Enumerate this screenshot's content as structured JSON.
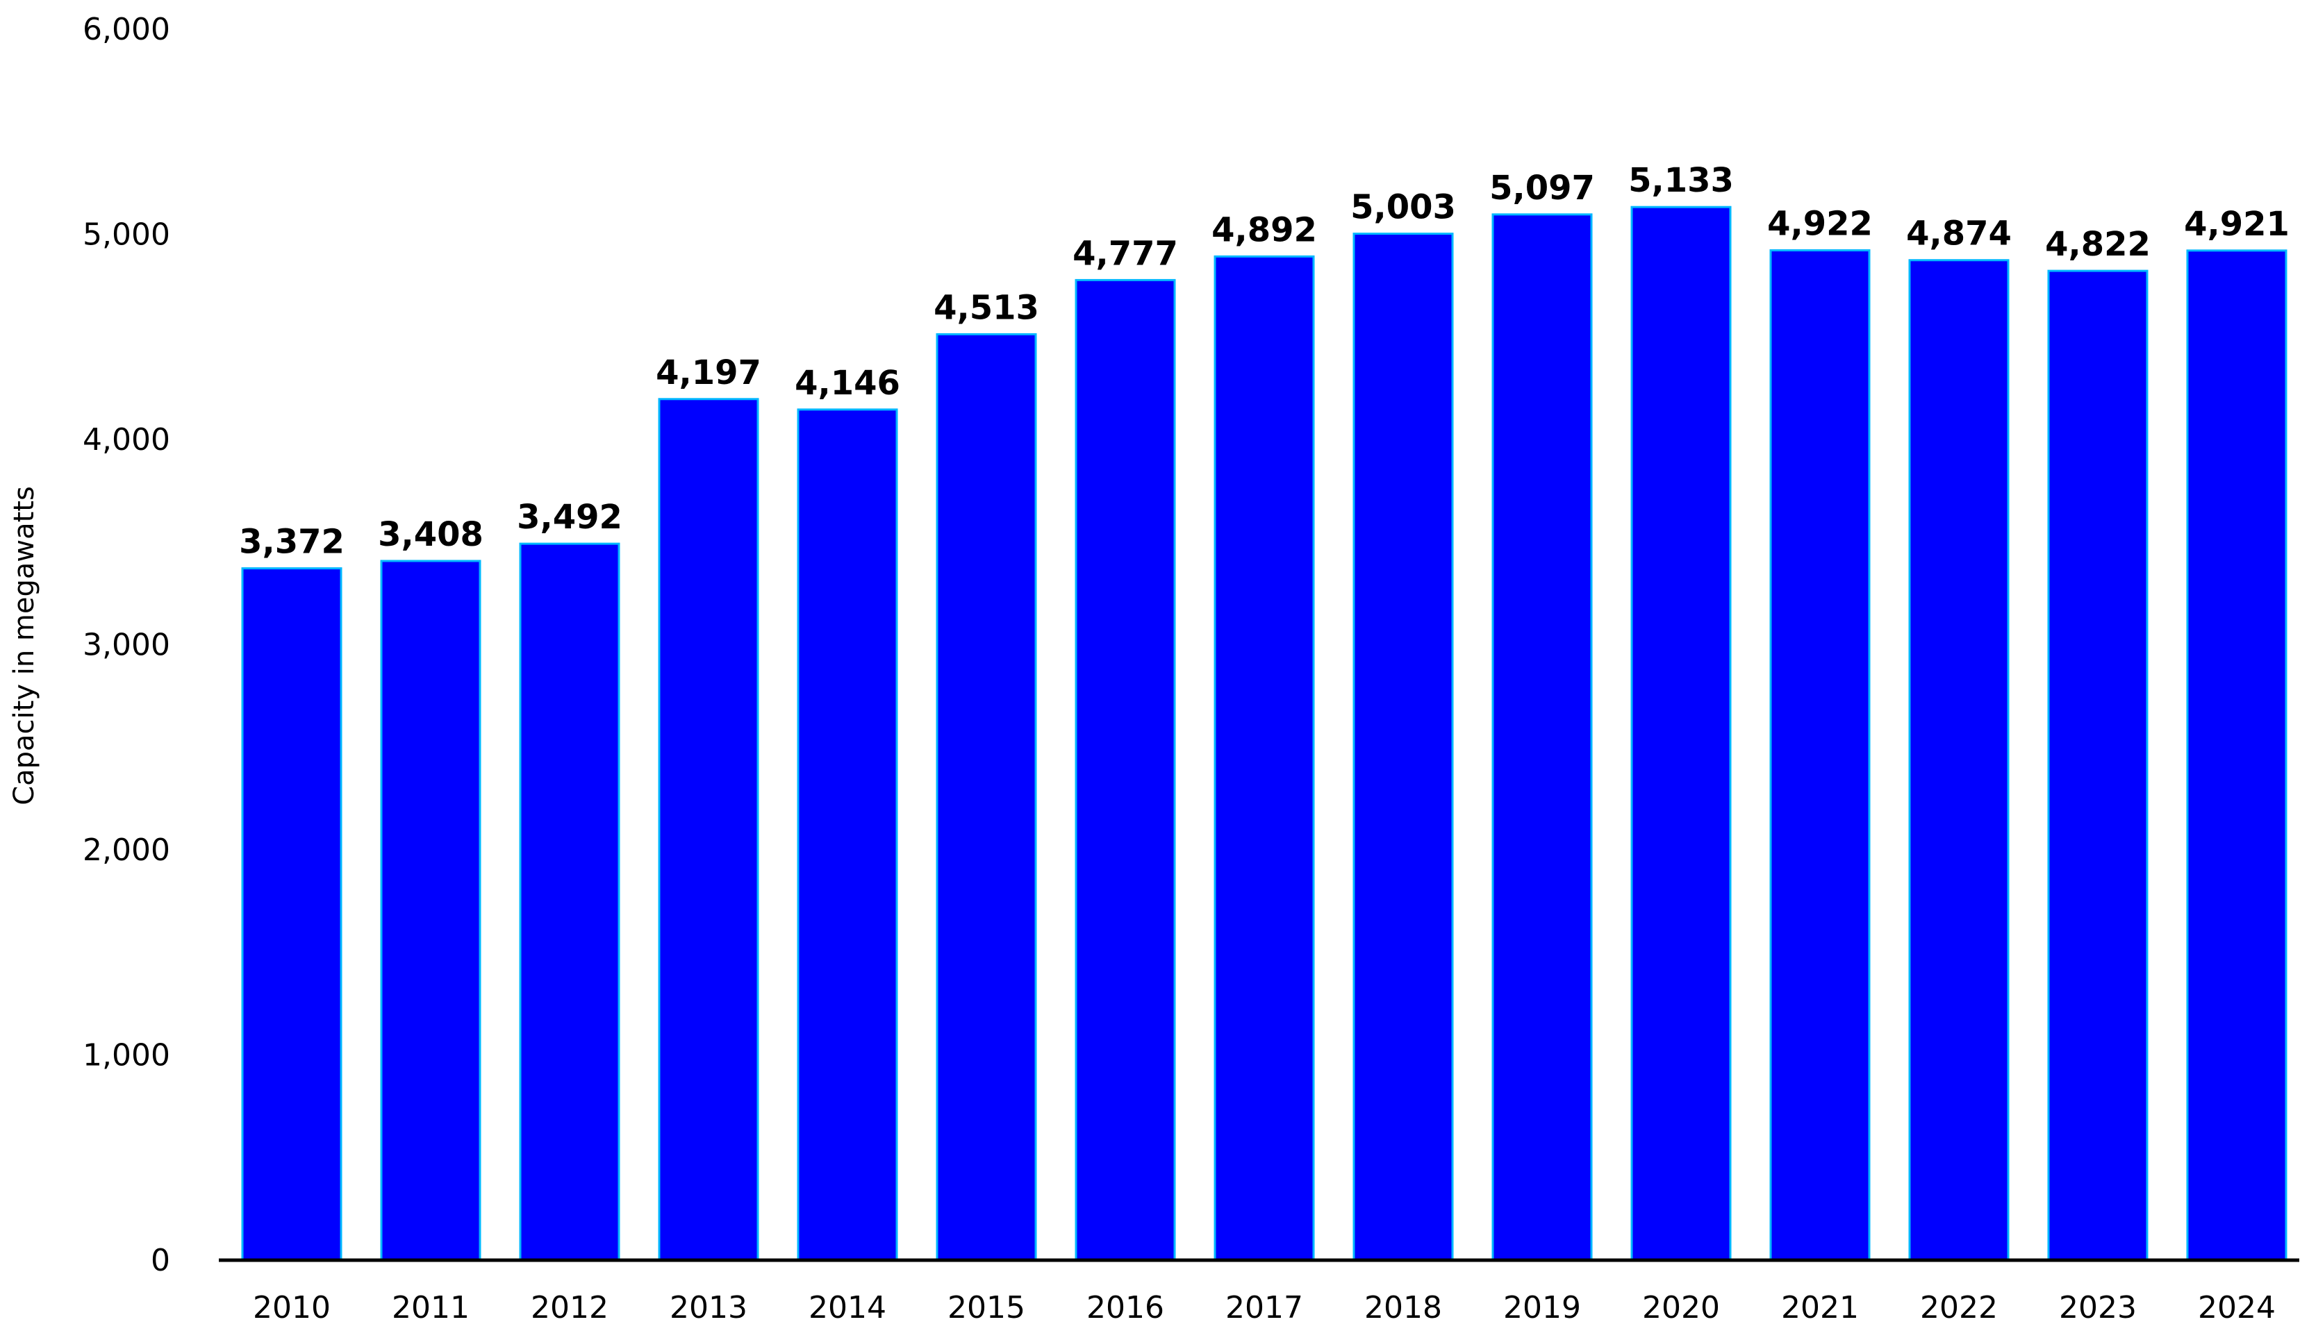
{
  "chart_data": {
    "type": "bar",
    "title": "",
    "xlabel": "",
    "ylabel": "Capacity in megawatts",
    "categories": [
      "2010",
      "2011",
      "2012",
      "2013",
      "2014",
      "2015",
      "2016",
      "2017",
      "2018",
      "2019",
      "2020",
      "2021",
      "2022",
      "2023",
      "2024"
    ],
    "values": [
      3372,
      3408,
      3492,
      4197,
      4146,
      4513,
      4777,
      4892,
      5003,
      5097,
      5133,
      4922,
      4874,
      4822,
      4921
    ],
    "ylim": [
      0,
      6000
    ],
    "yticks": [
      "0",
      "1,000",
      "2,000",
      "3,000",
      "4,000",
      "5,000",
      "6,000"
    ],
    "grid": false,
    "legend": "none",
    "colors": {
      "bar": "#0000ff",
      "bar_edge": "#00b7ff",
      "axis": "#000000"
    }
  }
}
